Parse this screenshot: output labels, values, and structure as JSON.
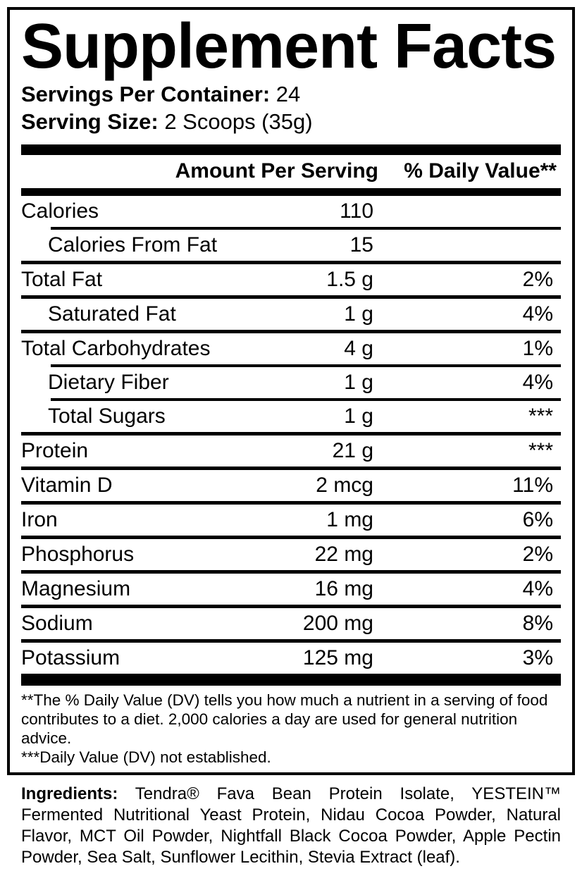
{
  "label": {
    "title": "Supplement Facts",
    "servings_per_container_label": "Servings Per Container:",
    "servings_per_container_value": "24",
    "serving_size_label": "Serving Size:",
    "serving_size_value": "2 Scoops (35g)",
    "columns": {
      "amount": "Amount Per Serving",
      "daily_value": "% Daily Value**"
    },
    "rows": [
      {
        "name": "Calories",
        "amount": "110",
        "dv": "",
        "indent": false,
        "sep_above": "none"
      },
      {
        "name": "Calories From Fat",
        "amount": "15",
        "dv": "",
        "indent": true,
        "sep_above": "indent"
      },
      {
        "name": "Total Fat",
        "amount": "1.5 g",
        "dv": "2%",
        "indent": false,
        "sep_above": "full"
      },
      {
        "name": "Saturated Fat",
        "amount": "1 g",
        "dv": "4%",
        "indent": true,
        "sep_above": "full"
      },
      {
        "name": "Total Carbohydrates",
        "amount": "4 g",
        "dv": "1%",
        "indent": false,
        "sep_above": "full"
      },
      {
        "name": "Dietary Fiber",
        "amount": "1 g",
        "dv": "4%",
        "indent": true,
        "sep_above": "indent"
      },
      {
        "name": "Total Sugars",
        "amount": "1 g",
        "dv": "***",
        "indent": true,
        "sep_above": "indent"
      },
      {
        "name": "Protein",
        "amount": "21 g",
        "dv": "***",
        "indent": false,
        "sep_above": "full"
      },
      {
        "name": "Vitamin D",
        "amount": "2 mcg",
        "dv": "11%",
        "indent": false,
        "sep_above": "full"
      },
      {
        "name": "Iron",
        "amount": "1 mg",
        "dv": "6%",
        "indent": false,
        "sep_above": "full"
      },
      {
        "name": "Phosphorus",
        "amount": "22 mg",
        "dv": "2%",
        "indent": false,
        "sep_above": "full"
      },
      {
        "name": "Magnesium",
        "amount": "16 mg",
        "dv": "4%",
        "indent": false,
        "sep_above": "full"
      },
      {
        "name": "Sodium",
        "amount": "200 mg",
        "dv": "8%",
        "indent": false,
        "sep_above": "full"
      },
      {
        "name": "Potassium",
        "amount": "125 mg",
        "dv": "3%",
        "indent": false,
        "sep_above": "full"
      }
    ],
    "footnotes": [
      "**The % Daily Value (DV) tells you how much a nutrient in a serving of food contributes to a diet. 2,000 calories a day are used for general nutrition advice.",
      "***Daily Value (DV) not established."
    ]
  },
  "ingredients": {
    "label": "Ingredients:",
    "text": " Tendra® Fava Bean Protein Isolate, YESTEIN™ Fermented Nutritional Yeast Protein, Nidau Cocoa Powder, Natural Flavor, MCT Oil Powder, Nightfall Black Cocoa Powder, Apple Pectin Powder, Sea Salt, Sunflower Lecithin, Stevia Extract (leaf)."
  },
  "colors": {
    "text": "#000000",
    "background": "#ffffff"
  }
}
